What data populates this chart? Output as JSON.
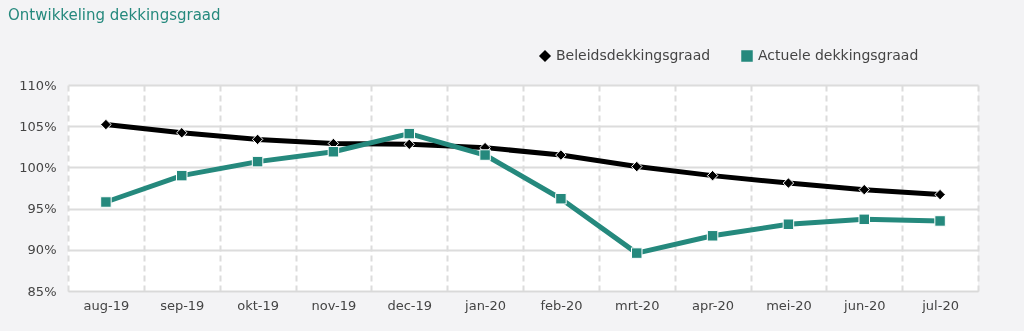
{
  "chart_data": {
    "type": "line",
    "title": "Ontwikkeling dekkingsgraad",
    "categories": [
      "aug-19",
      "sep-19",
      "okt-19",
      "nov-19",
      "dec-19",
      "jan-20",
      "feb-20",
      "mrt-20",
      "apr-20",
      "mei-20",
      "jun-20",
      "jul-20"
    ],
    "series": [
      {
        "name": "Beleidsdekkingsgraad",
        "color": "#000000",
        "marker": "diamond",
        "values": [
          105.2,
          104.2,
          103.4,
          102.9,
          102.8,
          102.4,
          101.5,
          100.1,
          99.0,
          98.1,
          97.3,
          96.7
        ]
      },
      {
        "name": "Actuele dekkingsgraad",
        "color": "#25897d",
        "marker": "square",
        "values": [
          95.8,
          99.0,
          100.7,
          101.9,
          104.1,
          101.5,
          96.2,
          89.6,
          91.7,
          93.1,
          93.7,
          93.5
        ]
      }
    ],
    "ylim": [
      85,
      110
    ],
    "yticks": [
      {
        "value": 85,
        "label": "85%"
      },
      {
        "value": 90,
        "label": "90%"
      },
      {
        "value": 95,
        "label": "95%"
      },
      {
        "value": 100,
        "label": "100%"
      },
      {
        "value": 105,
        "label": "105%"
      },
      {
        "value": 110,
        "label": "110%"
      }
    ],
    "grid": true,
    "legend": "top right",
    "line_style": "solid"
  }
}
